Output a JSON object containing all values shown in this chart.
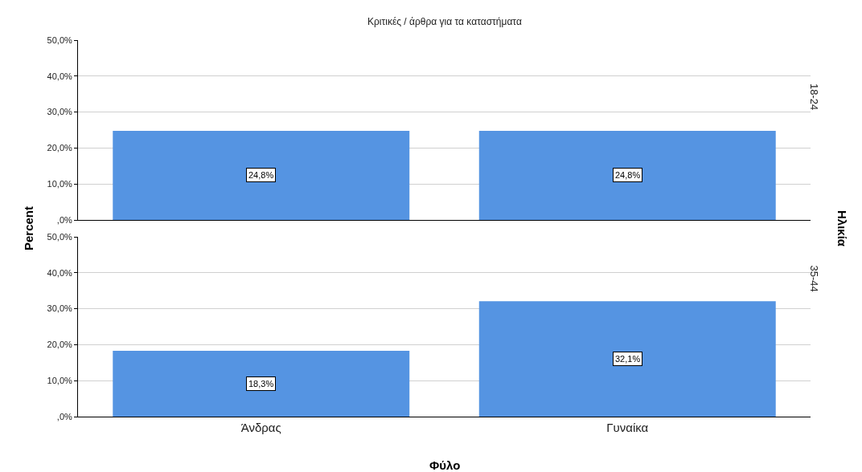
{
  "chart_data": [
    {
      "type": "bar",
      "title": "Κριτικές / άρθρα για τα καταστήματα",
      "ylabel": "Percent",
      "categories": [
        null,
        null
      ],
      "values": [
        24.8,
        24.8
      ],
      "value_labels": [
        "24,8%",
        "24,8%"
      ],
      "color": "#5594e2",
      "ylim": [
        0,
        50
      ],
      "yticks": [
        {
          "value": 0,
          "label": ",0%"
        },
        {
          "value": 10,
          "label": "10,0%"
        },
        {
          "value": 20,
          "label": "20,0%"
        },
        {
          "value": 30,
          "label": "30,0%"
        },
        {
          "value": 40,
          "label": "40,0%"
        },
        {
          "value": 50,
          "label": "50,0%"
        }
      ],
      "grid": "y",
      "tick_labels": "y",
      "annotations": [
        "18-24",
        "Ηλικία"
      ]
    },
    {
      "type": "bar",
      "xlabel": "Φύλο",
      "categories": [
        "Άνδρας",
        "Γυναίκα"
      ],
      "values": [
        18.3,
        32.1
      ],
      "value_labels": [
        "18,3%",
        "32,1%"
      ],
      "color": "#5594e2",
      "ylim": [
        0,
        50
      ],
      "yticks": [
        {
          "value": 0,
          "label": ",0%"
        },
        {
          "value": 10,
          "label": "10,0%"
        },
        {
          "value": 20,
          "label": "20,0%"
        },
        {
          "value": 30,
          "label": "30,0%"
        },
        {
          "value": 40,
          "label": "40,0%"
        },
        {
          "value": 50,
          "label": "50,0%"
        }
      ],
      "grid": "y",
      "annotations": [
        "35-44"
      ]
    }
  ]
}
